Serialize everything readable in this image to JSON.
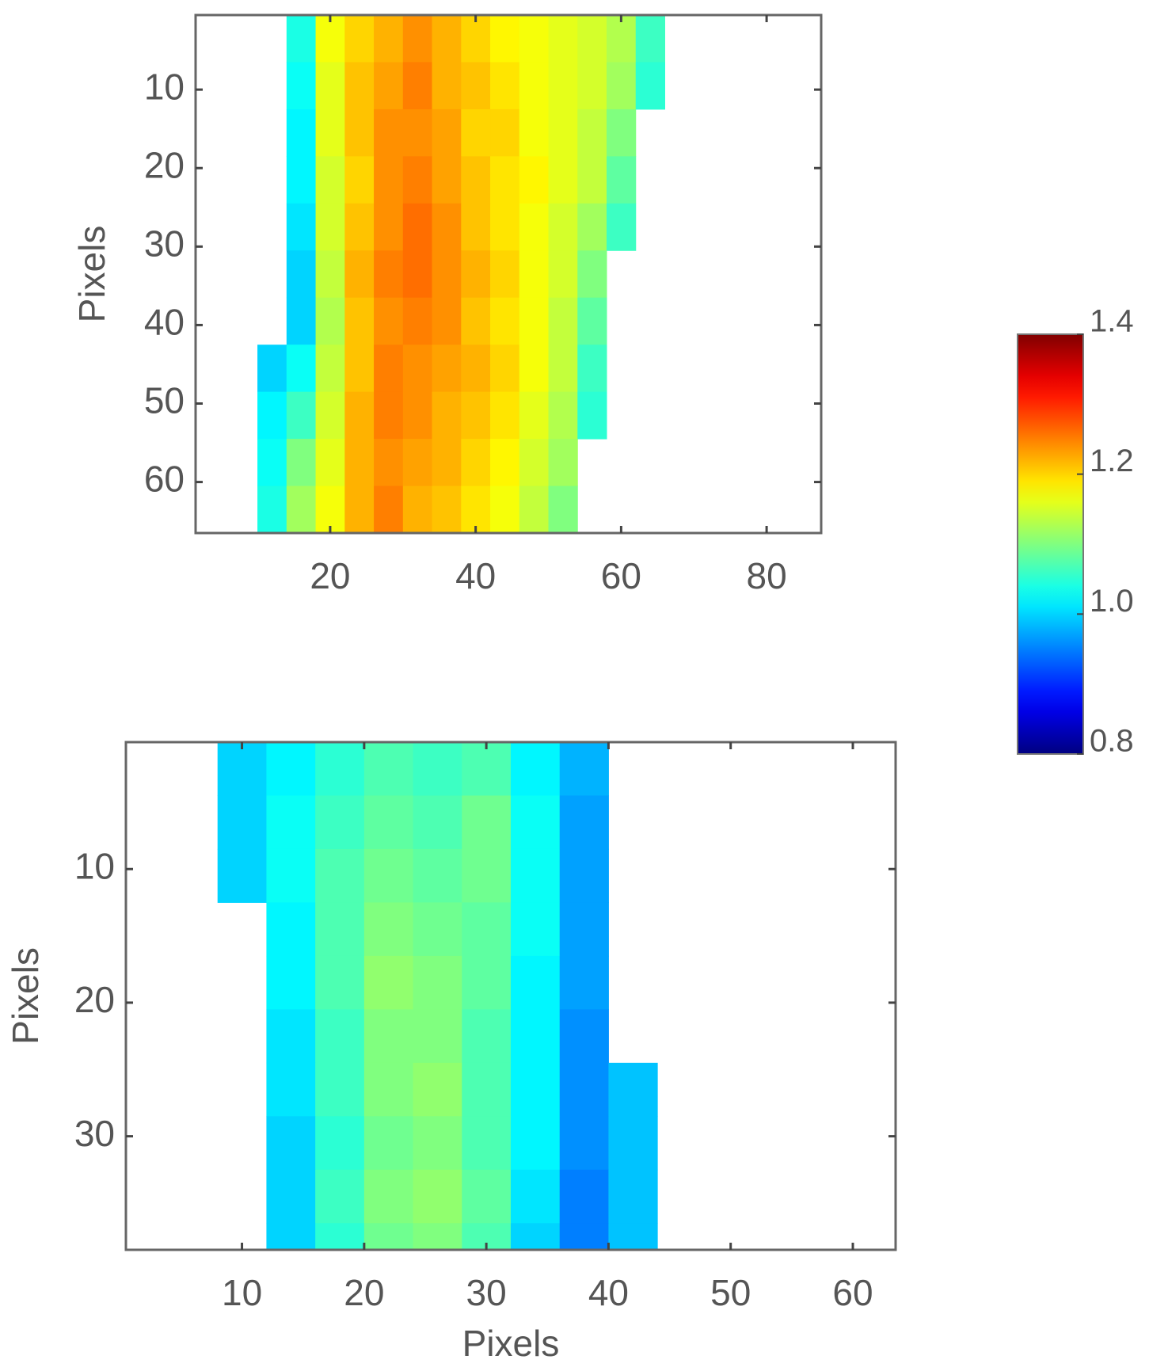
{
  "chart_data": [
    {
      "type": "heatmap",
      "ylabel": "Pixels",
      "x_edges": [
        10,
        14,
        18,
        22,
        26,
        30,
        34,
        38,
        42,
        46,
        50,
        54,
        58,
        62,
        66
      ],
      "y_edges": [
        0.5,
        6.5,
        12.5,
        18.5,
        24.5,
        30.5,
        36.5,
        42.5,
        48.5,
        54.5,
        60.5,
        66.5
      ],
      "z": [
        [
          null,
          1.04,
          1.17,
          1.2,
          1.22,
          1.24,
          1.22,
          1.2,
          1.18,
          1.17,
          1.16,
          1.15,
          1.13,
          1.06
        ],
        [
          null,
          1.03,
          1.16,
          1.21,
          1.23,
          1.25,
          1.22,
          1.21,
          1.19,
          1.17,
          1.16,
          1.15,
          1.12,
          1.05
        ],
        [
          null,
          1.02,
          1.16,
          1.21,
          1.24,
          1.24,
          1.23,
          1.2,
          1.2,
          1.17,
          1.16,
          1.14,
          1.1,
          null
        ],
        [
          null,
          1.02,
          1.15,
          1.2,
          1.24,
          1.25,
          1.23,
          1.21,
          1.19,
          1.18,
          1.16,
          1.14,
          1.08,
          null
        ],
        [
          null,
          1.01,
          1.15,
          1.21,
          1.24,
          1.26,
          1.24,
          1.21,
          1.19,
          1.17,
          1.15,
          1.12,
          1.06,
          null
        ],
        [
          null,
          1.0,
          1.14,
          1.22,
          1.25,
          1.26,
          1.24,
          1.22,
          1.2,
          1.17,
          1.15,
          1.1,
          null,
          null
        ],
        [
          null,
          1.0,
          1.13,
          1.21,
          1.24,
          1.25,
          1.24,
          1.21,
          1.19,
          1.17,
          1.14,
          1.08,
          null,
          null
        ],
        [
          1.0,
          1.03,
          1.14,
          1.21,
          1.25,
          1.24,
          1.23,
          1.22,
          1.2,
          1.17,
          1.14,
          1.06,
          null,
          null
        ],
        [
          1.02,
          1.06,
          1.15,
          1.22,
          1.25,
          1.24,
          1.22,
          1.21,
          1.19,
          1.16,
          1.13,
          1.05,
          null,
          null
        ],
        [
          1.03,
          1.1,
          1.16,
          1.22,
          1.24,
          1.23,
          1.22,
          1.2,
          1.18,
          1.15,
          1.12,
          null,
          null,
          null
        ],
        [
          1.04,
          1.12,
          1.17,
          1.22,
          1.25,
          1.22,
          1.21,
          1.19,
          1.17,
          1.14,
          1.1,
          null,
          null,
          null
        ]
      ],
      "xlim": [
        1.5,
        87.5
      ],
      "ylim": [
        0.5,
        66.5
      ],
      "y_reversed": true,
      "xticks": [
        20,
        40,
        60,
        80
      ],
      "yticks": [
        10,
        20,
        30,
        40,
        50,
        60
      ]
    },
    {
      "type": "heatmap",
      "xlabel": "Pixels",
      "ylabel": "Pixels",
      "x_edges": [
        8,
        12,
        16,
        20,
        24,
        28,
        32,
        36,
        40,
        44
      ],
      "y_edges": [
        0.5,
        4.5,
        8.5,
        12.5,
        16.5,
        20.5,
        24.5,
        28.5,
        32.5,
        36.5,
        38.5
      ],
      "z": [
        [
          1.0,
          1.02,
          1.05,
          1.07,
          1.06,
          1.07,
          1.02,
          0.98,
          null
        ],
        [
          1.0,
          1.03,
          1.06,
          1.08,
          1.07,
          1.09,
          1.03,
          0.97,
          null
        ],
        [
          1.0,
          1.03,
          1.07,
          1.09,
          1.08,
          1.09,
          1.03,
          0.97,
          null
        ],
        [
          null,
          1.02,
          1.07,
          1.1,
          1.09,
          1.08,
          1.03,
          0.97,
          null
        ],
        [
          null,
          1.02,
          1.07,
          1.11,
          1.1,
          1.08,
          1.02,
          0.97,
          null
        ],
        [
          null,
          1.01,
          1.06,
          1.1,
          1.1,
          1.07,
          1.02,
          0.96,
          null
        ],
        [
          null,
          1.01,
          1.06,
          1.1,
          1.11,
          1.07,
          1.02,
          0.96,
          0.99
        ],
        [
          null,
          1.0,
          1.05,
          1.09,
          1.1,
          1.07,
          1.02,
          0.96,
          0.99
        ],
        [
          null,
          1.0,
          1.06,
          1.1,
          1.11,
          1.08,
          1.01,
          0.95,
          0.99
        ],
        [
          null,
          1.0,
          1.05,
          1.09,
          1.1,
          1.07,
          1.0,
          0.95,
          0.99
        ]
      ],
      "xlim": [
        0.5,
        63.5
      ],
      "ylim": [
        0.5,
        38.5
      ],
      "y_reversed": true,
      "xticks": [
        10,
        20,
        30,
        40,
        50,
        60
      ],
      "yticks": [
        10,
        20,
        30
      ]
    }
  ],
  "colorbar": {
    "colormap": "jet",
    "clim": [
      0.8,
      1.4
    ],
    "ticks": [
      0.8,
      {
        "value": 1,
        "label": "1.0"
      },
      1.2,
      1.4
    ]
  }
}
